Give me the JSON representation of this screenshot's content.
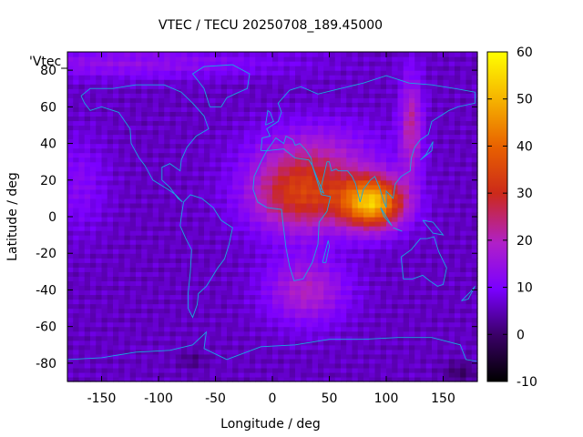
{
  "chart_data": {
    "type": "heatmap",
    "title": "VTEC / TECU 20250708_189.45000",
    "xlabel": "Longitude / deg",
    "ylabel": "Latitude / deg",
    "xlim": [
      -180,
      180
    ],
    "ylim": [
      -90,
      90
    ],
    "x_ticks": [
      -150,
      -100,
      -50,
      0,
      50,
      100,
      150
    ],
    "y_ticks": [
      -80,
      -60,
      -40,
      -20,
      0,
      20,
      40,
      60,
      80
    ],
    "colorbar": {
      "range": [
        -10,
        60
      ],
      "ticks": [
        -10,
        0,
        10,
        20,
        30,
        40,
        50,
        60
      ],
      "palette": [
        "#000000",
        "#3a0066",
        "#7a00ff",
        "#b020c8",
        "#cc2a1a",
        "#e86000",
        "#f5b000",
        "#ffff00"
      ]
    },
    "overlay_label": "'Vtec_",
    "grid": false,
    "description_of_field": "Global map of vertical TEC; peak ~55 TECU over India/SE Asia near 0-20N, 70-110E; elevated (~30-40) over Africa/Arabia; low (~5-10) over Pacific and poles."
  }
}
